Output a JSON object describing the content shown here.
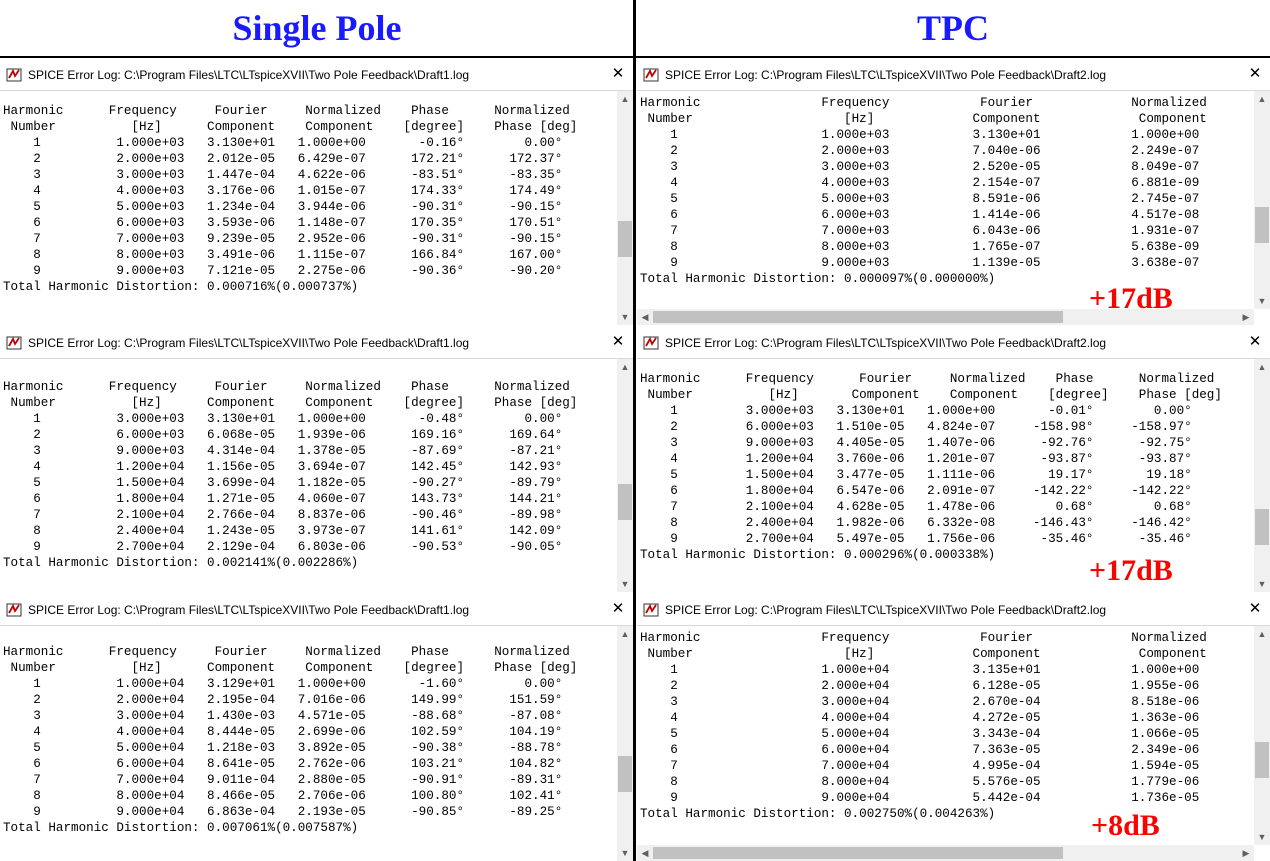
{
  "headers": {
    "left": "Single Pole",
    "right": "TPC"
  },
  "window_titles": {
    "draft1": "SPICE Error Log: C:\\Program Files\\LTC\\LTspiceXVII\\Two Pole Feedback\\Draft1.log",
    "draft2": "SPICE Error Log: C:\\Program Files\\LTC\\LTspiceXVII\\Two Pole Feedback\\Draft2.log"
  },
  "icons": {
    "app": "ltspice-icon",
    "close": "close-icon"
  },
  "panels": {
    "sp1": "Harmonic      Frequency     Fourier     Normalized    Phase      Normalized\n Number          [Hz]      Component    Component    [degree]    Phase [deg]\n    1          1.000e+03   3.130e+01   1.000e+00       -0.16°        0.00°\n    2          2.000e+03   2.012e-05   6.429e-07      172.21°      172.37°\n    3          3.000e+03   1.447e-04   4.622e-06      -83.51°      -83.35°\n    4          4.000e+03   3.176e-06   1.015e-07      174.33°      174.49°\n    5          5.000e+03   1.234e-04   3.944e-06      -90.31°      -90.15°\n    6          6.000e+03   3.593e-06   1.148e-07      170.35°      170.51°\n    7          7.000e+03   9.239e-05   2.952e-06      -90.31°      -90.15°\n    8          8.000e+03   3.491e-06   1.115e-07      166.84°      167.00°\n    9          9.000e+03   7.121e-05   2.275e-06      -90.36°      -90.20°\nTotal Harmonic Distortion: 0.000716%(0.000737%)",
    "sp2": "Harmonic      Frequency     Fourier     Normalized    Phase      Normalized\n Number          [Hz]      Component    Component    [degree]    Phase [deg]\n    1          3.000e+03   3.130e+01   1.000e+00       -0.48°        0.00°\n    2          6.000e+03   6.068e-05   1.939e-06      169.16°      169.64°\n    3          9.000e+03   4.314e-04   1.378e-05      -87.69°      -87.21°\n    4          1.200e+04   1.156e-05   3.694e-07      142.45°      142.93°\n    5          1.500e+04   3.699e-04   1.182e-05      -90.27°      -89.79°\n    6          1.800e+04   1.271e-05   4.060e-07      143.73°      144.21°\n    7          2.100e+04   2.766e-04   8.837e-06      -90.46°      -89.98°\n    8          2.400e+04   1.243e-05   3.973e-07      141.61°      142.09°\n    9          2.700e+04   2.129e-04   6.803e-06      -90.53°      -90.05°\nTotal Harmonic Distortion: 0.002141%(0.002286%)",
    "sp3": "Harmonic      Frequency     Fourier     Normalized    Phase      Normalized\n Number          [Hz]      Component    Component    [degree]    Phase [deg]\n    1          1.000e+04   3.129e+01   1.000e+00       -1.60°        0.00°\n    2          2.000e+04   2.195e-04   7.016e-06      149.99°      151.59°\n    3          3.000e+04   1.430e-03   4.571e-05      -88.68°      -87.08°\n    4          4.000e+04   8.444e-05   2.699e-06      102.59°      104.19°\n    5          5.000e+04   1.218e-03   3.892e-05      -90.38°      -88.78°\n    6          6.000e+04   8.641e-05   2.762e-06      103.21°      104.82°\n    7          7.000e+04   9.011e-04   2.880e-05      -90.91°      -89.31°\n    8          8.000e+04   8.466e-05   2.706e-06      100.80°      102.41°\n    9          9.000e+04   6.863e-04   2.193e-05      -90.85°      -89.25°\nTotal Harmonic Distortion: 0.007061%(0.007587%)",
    "tpc1": "Harmonic                Frequency            Fourier             Normalized\n Number                    [Hz]             Component             Component\n    1                   1.000e+03           3.130e+01            1.000e+00\n    2                   2.000e+03           7.040e-06            2.249e-07\n    3                   3.000e+03           2.520e-05            8.049e-07\n    4                   4.000e+03           2.154e-07            6.881e-09\n    5                   5.000e+03           8.591e-06            2.745e-07\n    6                   6.000e+03           1.414e-06            4.517e-08\n    7                   7.000e+03           6.043e-06            1.931e-07\n    8                   8.000e+03           1.765e-07            5.638e-09\n    9                   9.000e+03           1.139e-05            3.638e-07\nTotal Harmonic Distortion: 0.000097%(0.000000%)",
    "tpc2": "Harmonic      Frequency      Fourier     Normalized    Phase      Normalized\n Number          [Hz]       Component    Component    [degree]    Phase [deg]\n    1         3.000e+03   3.130e+01   1.000e+00       -0.01°        0.00°\n    2         6.000e+03   1.510e-05   4.824e-07     -158.98°     -158.97°\n    3         9.000e+03   4.405e-05   1.407e-06      -92.76°      -92.75°\n    4         1.200e+04   3.760e-06   1.201e-07      -93.87°      -93.87°\n    5         1.500e+04   3.477e-05   1.111e-06       19.17°       19.18°\n    6         1.800e+04   6.547e-06   2.091e-07     -142.22°     -142.22°\n    7         2.100e+04   4.628e-05   1.478e-06        0.68°        0.68°\n    8         2.400e+04   1.982e-06   6.332e-08     -146.43°     -146.42°\n    9         2.700e+04   5.497e-05   1.756e-06      -35.46°      -35.46°\nTotal Harmonic Distortion: 0.000296%(0.000338%)",
    "tpc3": "Harmonic                Frequency            Fourier             Normalized\n Number                    [Hz]             Component             Component\n    1                   1.000e+04           3.135e+01            1.000e+00\n    2                   2.000e+04           6.128e-05            1.955e-06\n    3                   3.000e+04           2.670e-04            8.518e-06\n    4                   4.000e+04           4.272e-05            1.363e-06\n    5                   5.000e+04           3.343e-04            1.066e-05\n    6                   6.000e+04           7.363e-05            2.349e-06\n    7                   7.000e+04           4.995e-04            1.594e-05\n    8                   8.000e+04           5.576e-05            1.779e-06\n    9                   9.000e+04           5.442e-04            1.736e-05\nTotal Harmonic Distortion: 0.002750%(0.004263%)"
  },
  "annotations": {
    "tpc1": "+17dB",
    "tpc2": "+17dB",
    "tpc3": "+8dB"
  },
  "colors": {
    "header_text": "#1a1aff",
    "annotation": "#ff0000"
  }
}
